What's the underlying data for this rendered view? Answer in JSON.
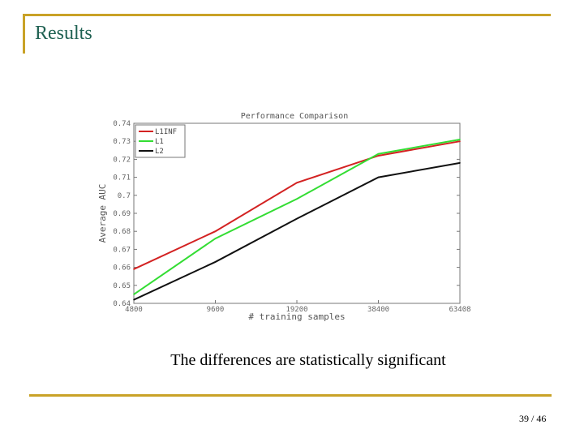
{
  "slide": {
    "title": "Results",
    "caption": "The differences are statistically significant",
    "page_number": "39 / 46"
  },
  "colors": {
    "accent": "#c9a227",
    "title_text": "#1f6152"
  },
  "chart_data": {
    "type": "line",
    "title": "Performance Comparison",
    "xlabel": "# training samples",
    "ylabel": "Average AUC",
    "categories": [
      "4800",
      "9600",
      "19200",
      "38400",
      "63408"
    ],
    "ylim": [
      0.64,
      0.74
    ],
    "yticks": [
      "0.64",
      "0.65",
      "0.66",
      "0.67",
      "0.68",
      "0.69",
      "0.7",
      "0.71",
      "0.72",
      "0.73",
      "0.74"
    ],
    "legend_position": "top-left",
    "series": [
      {
        "name": "L1INF",
        "color": "#d32222",
        "values": [
          0.659,
          0.68,
          0.707,
          0.722,
          0.73
        ]
      },
      {
        "name": "L1",
        "color": "#33dd33",
        "values": [
          0.645,
          0.676,
          0.698,
          0.723,
          0.731
        ]
      },
      {
        "name": "L2",
        "color": "#111111",
        "values": [
          0.642,
          0.663,
          0.687,
          0.71,
          0.718
        ]
      }
    ]
  }
}
